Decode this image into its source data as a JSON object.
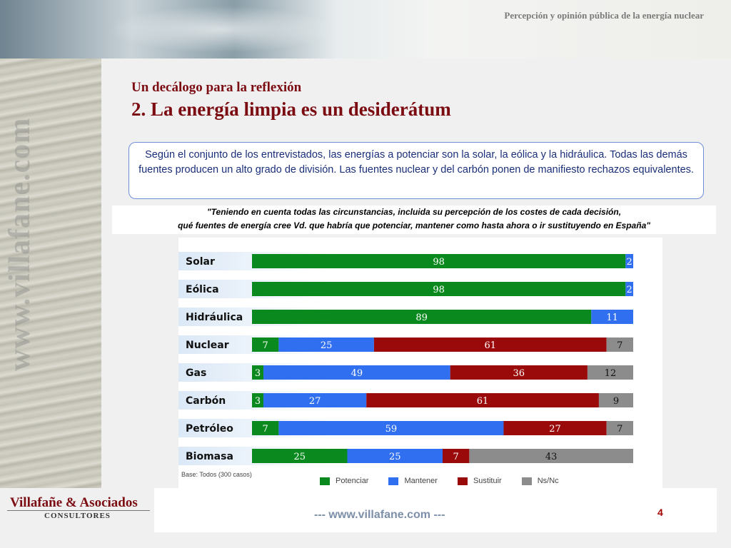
{
  "header": {
    "title": "Percepción y opinión pública de la energía nuclear"
  },
  "watermark": "www.villafane.com",
  "slide": {
    "subtitle": "Un decálogo para la reflexión",
    "title": "2. La energía limpia es un desiderátum",
    "summary": "Según el conjunto de los entrevistados, las energías a potenciar son la solar, la eólica y la hidráulica. Todas las demás fuentes producen un alto grado de división. Las fuentes nuclear y del carbón ponen de manifiesto rechazos equivalentes.",
    "question_line1": "\"Teniendo en cuenta todas las circunstancias, incluida su percepción de los costes de cada decisión,",
    "question_line2": "qué fuentes de energía cree Vd. que habría que potenciar, mantener como hasta ahora o ir sustituyendo en España\""
  },
  "chart_data": {
    "type": "bar",
    "orientation": "horizontal",
    "stacked": true,
    "base_note": "Base: Todos (300 casos)",
    "categories": [
      "Solar",
      "Eólica",
      "Hidráulica",
      "Nuclear",
      "Gas",
      "Carbón",
      "Petróleo",
      "Biomasa"
    ],
    "series": [
      {
        "name": "Potenciar",
        "color": "#0a8a1e",
        "values": [
          98,
          98,
          89,
          7,
          3,
          3,
          7,
          25
        ]
      },
      {
        "name": "Mantener",
        "color": "#2f6ff0",
        "values": [
          2,
          2,
          11,
          25,
          49,
          27,
          59,
          25
        ]
      },
      {
        "name": "Sustituir",
        "color": "#9b0a0a",
        "values": [
          null,
          null,
          null,
          61,
          36,
          61,
          27,
          7
        ]
      },
      {
        "name": "Ns/Nc",
        "color": "#8c8c8c",
        "values": [
          null,
          null,
          null,
          7,
          12,
          9,
          7,
          43
        ]
      }
    ],
    "legend": "bottom"
  },
  "footer": {
    "company": "Villafañe & Asociados",
    "company_sub": "CONSULTORES",
    "url": "---  www.villafane.com  ---",
    "page_number": "4"
  }
}
